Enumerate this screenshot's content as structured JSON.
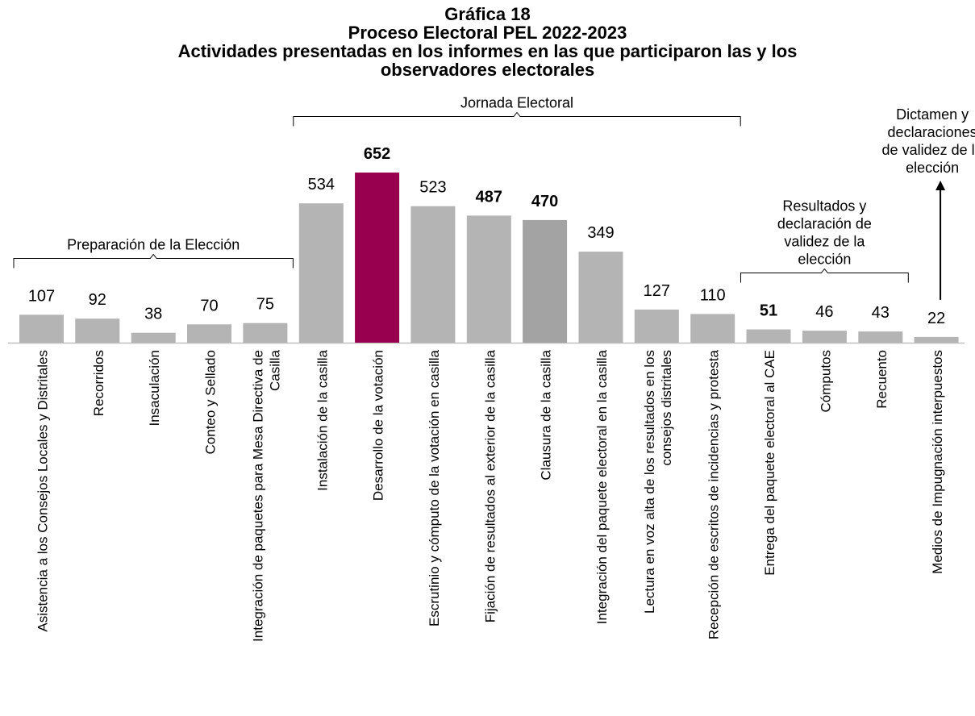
{
  "chart_data": {
    "type": "bar",
    "title_lines": [
      "Gráfica 18",
      "Proceso Electoral PEL 2022-2023",
      "Actividades presentadas en los informes en las que participaron las y los",
      "observadores electorales"
    ],
    "categories": [
      "Asistencia a los Consejos Locales y Distritales",
      "Recorridos",
      "Insaculación",
      "Conteo y Sellado",
      "Integración de paquetes para Mesa Directiva de Casilla",
      "Instalación de la casilla",
      "Desarrollo de la votación",
      "Escrutinio y cómputo de la votación en casilla",
      "Fijación de resultados al exterior de la casilla",
      "Clausura de la casilla",
      "Integración del paquete electoral en la casilla",
      "Lectura en voz alta de los resultados en los consejos distritales",
      "Recepción de escritos de incidencias y protesta",
      "Entrega del paquete electoral al CAE",
      "Cómputos",
      "Recuento",
      "Medios de Impugnación interpuestos"
    ],
    "category_label_lines": [
      [
        "Asistencia a los Consejos Locales y Distritales"
      ],
      [
        "Recorridos"
      ],
      [
        "Insaculación"
      ],
      [
        "Conteo y Sellado"
      ],
      [
        "Integración de paquetes para Mesa Directiva de",
        "Casilla"
      ],
      [
        "Instalación de la casilla"
      ],
      [
        "Desarrollo de la votación"
      ],
      [
        "Escrutinio y cómputo de la votación en casilla"
      ],
      [
        "Fijación de resultados al exterior de la casilla"
      ],
      [
        "Clausura de la casilla"
      ],
      [
        "Integración del paquete electoral en la casilla"
      ],
      [
        "Lectura en voz alta de los resultados en los",
        "consejos distritales"
      ],
      [
        "Recepción de escritos de incidencias y protesta"
      ],
      [
        "Entrega del paquete electoral al CAE"
      ],
      [
        "Cómputos"
      ],
      [
        "Recuento"
      ],
      [
        "Medios de Impugnación interpuestos"
      ]
    ],
    "values": [
      107,
      92,
      38,
      70,
      75,
      534,
      652,
      523,
      487,
      470,
      349,
      127,
      110,
      51,
      46,
      43,
      22
    ],
    "bold_values": [
      false,
      false,
      false,
      false,
      false,
      false,
      true,
      false,
      true,
      true,
      false,
      false,
      false,
      true,
      false,
      false,
      false
    ],
    "bar_colors": [
      "#b4b4b4",
      "#b4b4b4",
      "#b4b4b4",
      "#b4b4b4",
      "#b4b4b4",
      "#b4b4b4",
      "#98004f",
      "#b4b4b4",
      "#b4b4b4",
      "#a3a3a3",
      "#b4b4b4",
      "#b4b4b4",
      "#b4b4b4",
      "#b4b4b4",
      "#b4b4b4",
      "#b4b4b4",
      "#b4b4b4"
    ],
    "ylim": [
      0,
      652
    ],
    "grid": false,
    "groups": [
      {
        "label_lines": [
          "Preparación de la Elección"
        ],
        "first": 0,
        "last": 4,
        "type": "bracket"
      },
      {
        "label_lines": [
          "Jornada Electoral"
        ],
        "first": 5,
        "last": 12,
        "type": "bracket"
      },
      {
        "label_lines": [
          "Resultados y",
          "declaración de",
          "validez de la",
          "elección"
        ],
        "first": 13,
        "last": 15,
        "type": "bracket"
      },
      {
        "label_lines": [
          "Dictamen y",
          "declaraciones",
          "de validez de la",
          "elección"
        ],
        "first": 16,
        "last": 16,
        "type": "arrow"
      }
    ]
  }
}
